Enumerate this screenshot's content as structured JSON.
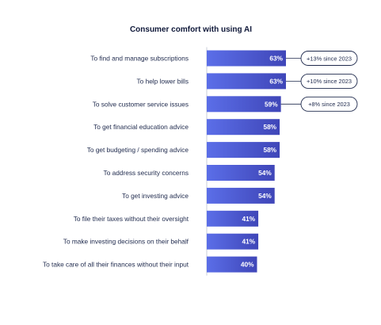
{
  "chart_data": {
    "type": "bar",
    "orientation": "horizontal",
    "title": "Consumer comfort with using AI",
    "categories": [
      "To find and manage subscriptions",
      "To help lower bills",
      "To solve customer service issues",
      "To get financial education advice",
      "To get budgeting / spending advice",
      "To address security concerns",
      "To get investing advice",
      "To file their taxes without their oversight",
      "To make investing decisions on their behalf",
      "To take care of all their finances without their input"
    ],
    "values": [
      63,
      63,
      59,
      58,
      58,
      54,
      54,
      41,
      41,
      40
    ],
    "value_labels": [
      "63%",
      "63%",
      "59%",
      "58%",
      "58%",
      "54%",
      "54%",
      "41%",
      "41%",
      "40%"
    ],
    "annotations": [
      {
        "category_index": 0,
        "text": "+13% since 2023"
      },
      {
        "category_index": 1,
        "text": "+10% since 2023"
      },
      {
        "category_index": 2,
        "text": "+8% since 2023"
      }
    ],
    "xlim": [
      0,
      100
    ],
    "grid": false,
    "legend": "none",
    "colors": {
      "bar_gradient_start": "#5b6ee8",
      "bar_gradient_end": "#3f46b8",
      "value_label": "#ffffff",
      "category_label": "#1f2a4d",
      "title": "#10193a",
      "axis_line": "#c9ccd9",
      "annotation_border": "#1f2a4d",
      "annotation_text": "#1f2a4d"
    }
  }
}
